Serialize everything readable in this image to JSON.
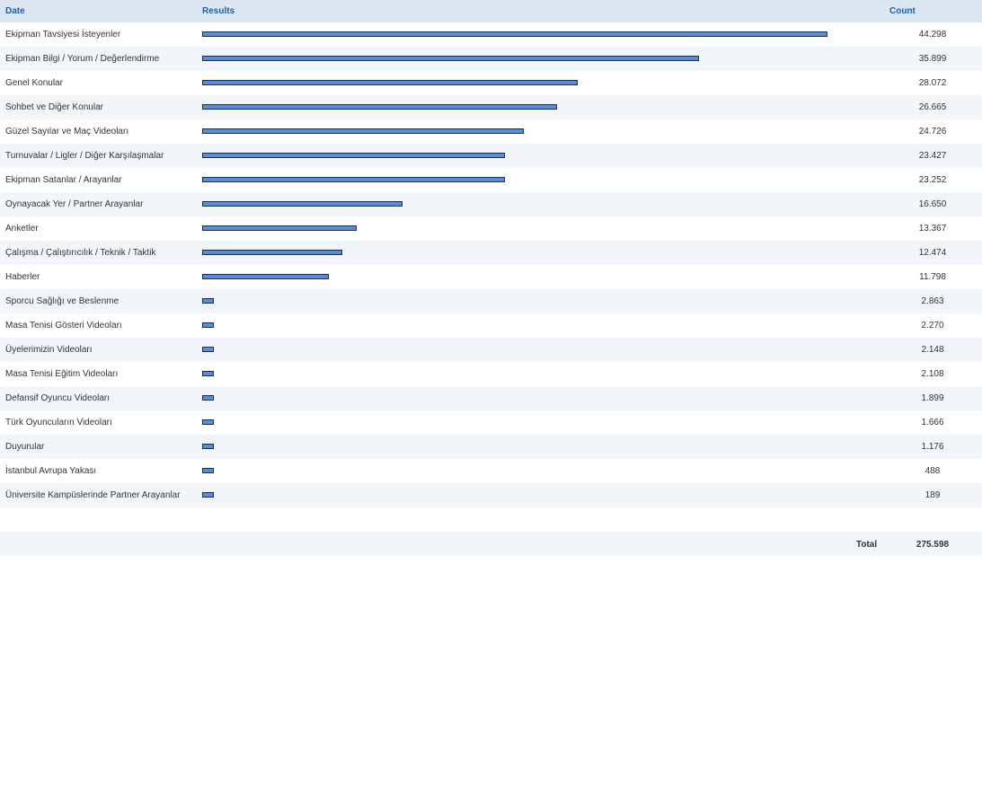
{
  "header": {
    "date_label": "Date",
    "results_label": "Results",
    "count_label": "Count"
  },
  "footer": {
    "total_label": "Total",
    "total_value": "275.598"
  },
  "colors": {
    "bar_fill": "#5b8dd0",
    "bar_border": "#1e2e4a",
    "header_bg": "#dbe6f1",
    "header_text": "#1f5f9f",
    "alt_row_bg": "#f2f6fa"
  },
  "chart_data": {
    "type": "bar",
    "orientation": "horizontal",
    "categories": [
      "Ekipman Tavsiyesi İsteyenler",
      "Ekipman Bilgi / Yorum / Değerlendirme",
      "Genel Konular",
      "Sohbet ve Diğer Konular",
      "Güzel Sayılar ve Maç Videoları",
      "Turnuvalar / Ligler / Diğer Karşılaşmalar",
      "Ekipman Satanlar / Arayanlar",
      "Oynayacak Yer / Partner Arayanlar",
      "Anketler",
      "Çalışma / Çalıştırıcılık / Teknik / Taktik",
      "Haberler",
      "Sporcu Sağlığı ve Beslenme",
      "Masa Tenisi Gösteri Videoları",
      "Üyelerimizin Videoları",
      "Masa Tenisi Eğitim Videoları",
      "Defansif Oyuncu Videoları",
      "Türk Oyuncuların Videoları",
      "Duyurular",
      "İstanbul Avrupa Yakası",
      "Üniversite Kampüslerinde Partner Arayanlar"
    ],
    "values": [
      44298,
      35899,
      28072,
      26665,
      24726,
      23427,
      23252,
      16650,
      13367,
      12474,
      11798,
      2863,
      2270,
      2148,
      2108,
      1899,
      1666,
      1176,
      488,
      189
    ],
    "bar_levels": [
      1.0,
      0.795,
      0.601,
      0.568,
      0.515,
      0.484,
      0.484,
      0.321,
      0.247,
      0.224,
      0.203,
      0.018,
      0.018,
      0.018,
      0.018,
      0.018,
      0.018,
      0.018,
      0.018,
      0.018
    ],
    "count_labels": [
      "44.298",
      "35.899",
      "28.072",
      "26.665",
      "24.726",
      "23.427",
      "23.252",
      "16.650",
      "13.367",
      "12.474",
      "11.798",
      "2.863",
      "2.270",
      "2.148",
      "2.108",
      "1.899",
      "1.666",
      "1.176",
      "488",
      "189"
    ]
  }
}
